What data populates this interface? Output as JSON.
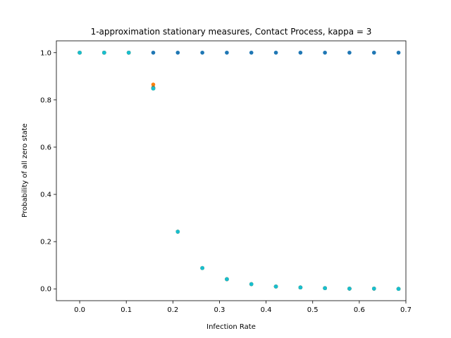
{
  "chart_data": {
    "type": "scatter",
    "title": "1-approximation stationary measures, Contact Process, kappa = 3",
    "xlabel": "Infection Rate",
    "ylabel": "Probability of all zero state",
    "xlim": [
      -0.05,
      0.7
    ],
    "ylim": [
      -0.05,
      1.05
    ],
    "grid": false,
    "x_ticks": [
      0.0,
      0.1,
      0.2,
      0.3,
      0.4,
      0.5,
      0.6,
      0.7
    ],
    "x_tick_labels": [
      "0.0",
      "0.1",
      "0.2",
      "0.3",
      "0.4",
      "0.5",
      "0.6",
      "0.7"
    ],
    "y_ticks": [
      0.0,
      0.2,
      0.4,
      0.6,
      0.8,
      1.0
    ],
    "y_tick_labels": [
      "0.0",
      "0.2",
      "0.4",
      "0.6",
      "0.8",
      "1.0"
    ],
    "x": [
      0.0,
      0.0526,
      0.1053,
      0.1579,
      0.2105,
      0.2632,
      0.3158,
      0.3684,
      0.4211,
      0.4737,
      0.5263,
      0.5789,
      0.6316,
      0.6842
    ],
    "series": [
      {
        "color": "#1f77b4",
        "values": [
          1.0,
          1.0,
          1.0,
          1.0,
          1.0,
          1.0,
          1.0,
          1.0,
          1.0,
          1.0,
          1.0,
          1.0,
          1.0,
          1.0
        ]
      },
      {
        "color": "#ff7f0e",
        "values": [
          1.0,
          1.0,
          1.0,
          0.865,
          0.242,
          0.088,
          0.041,
          0.02,
          0.01,
          0.006,
          0.003,
          0.001,
          0.001,
          0.0
        ]
      },
      {
        "color": "#2ca02c",
        "values": [
          1.0,
          1.0,
          1.0,
          0.852,
          0.242,
          0.088,
          0.041,
          0.02,
          0.01,
          0.006,
          0.003,
          0.001,
          0.001,
          0.0
        ]
      },
      {
        "color": "#d62728",
        "values": [
          1.0,
          1.0,
          1.0,
          0.85,
          0.242,
          0.088,
          0.041,
          0.02,
          0.01,
          0.006,
          0.003,
          0.001,
          0.001,
          0.0
        ]
      },
      {
        "color": "#9467bd",
        "values": [
          1.0,
          1.0,
          1.0,
          0.849,
          0.242,
          0.088,
          0.041,
          0.02,
          0.01,
          0.006,
          0.003,
          0.001,
          0.001,
          0.0
        ]
      },
      {
        "color": "#8c564b",
        "values": [
          1.0,
          1.0,
          1.0,
          0.848,
          0.242,
          0.088,
          0.041,
          0.02,
          0.01,
          0.006,
          0.003,
          0.001,
          0.001,
          0.0
        ]
      },
      {
        "color": "#e377c2",
        "values": [
          1.0,
          1.0,
          1.0,
          0.848,
          0.242,
          0.088,
          0.041,
          0.02,
          0.01,
          0.006,
          0.003,
          0.001,
          0.001,
          0.0
        ]
      },
      {
        "color": "#7f7f7f",
        "values": [
          1.0,
          1.0,
          1.0,
          0.848,
          0.242,
          0.088,
          0.041,
          0.02,
          0.01,
          0.006,
          0.003,
          0.001,
          0.001,
          0.0
        ]
      },
      {
        "color": "#bcbd22",
        "values": [
          1.0,
          1.0,
          1.0,
          0.848,
          0.242,
          0.088,
          0.041,
          0.02,
          0.01,
          0.006,
          0.003,
          0.001,
          0.001,
          0.0
        ]
      },
      {
        "color": "#17becf",
        "values": [
          1.0,
          1.0,
          1.0,
          0.848,
          0.242,
          0.088,
          0.041,
          0.02,
          0.01,
          0.006,
          0.003,
          0.001,
          0.001,
          0.0
        ]
      }
    ]
  }
}
